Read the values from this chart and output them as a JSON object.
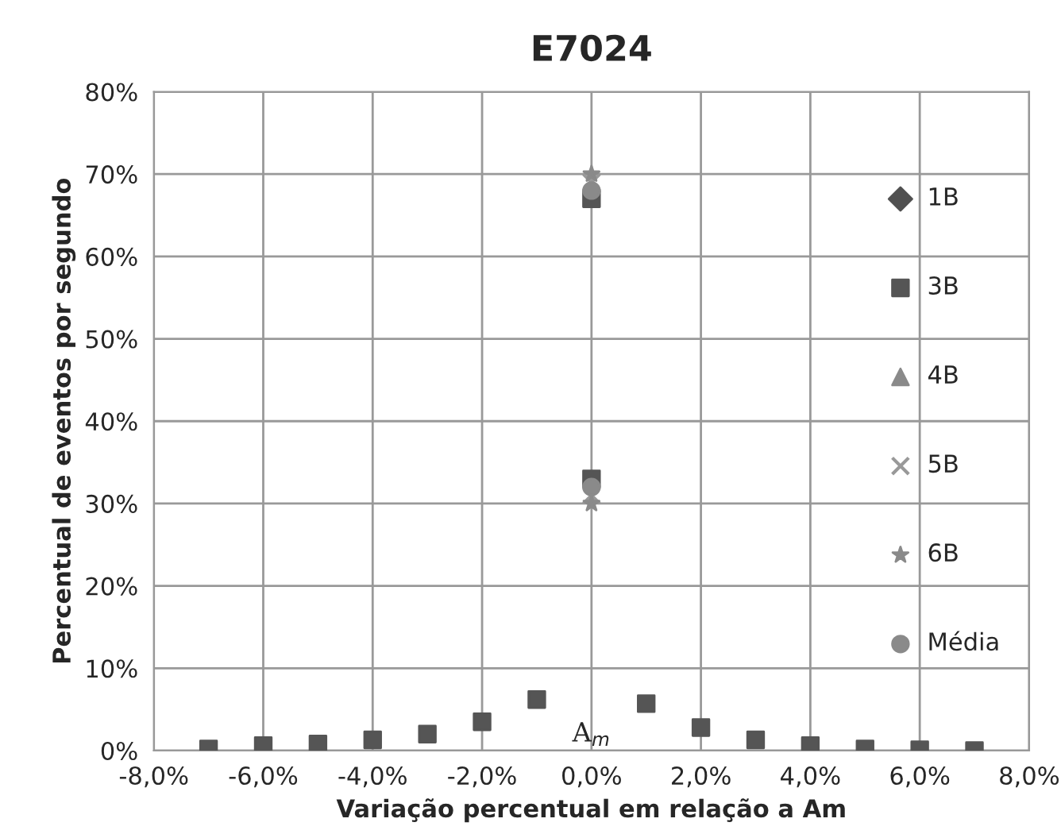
{
  "chart_data": {
    "type": "scatter",
    "title": "E7024",
    "xlabel": "Variação percentual em relação a Am",
    "ylabel": "Percentual de eventos por segundo",
    "x": [
      -7,
      -6,
      -5,
      -4,
      -3,
      -2,
      -1,
      0,
      0,
      1,
      2,
      3,
      4,
      5,
      6,
      7
    ],
    "series": [
      {
        "name": "1B",
        "color": "#505050",
        "marker": "diamond",
        "values": [
          null,
          null,
          null,
          null,
          null,
          null,
          null,
          null,
          null,
          null,
          null,
          null,
          null,
          null,
          null,
          null
        ]
      },
      {
        "name": "3B",
        "color": "#555555",
        "marker": "square",
        "values": [
          0.2,
          0.6,
          0.8,
          1.3,
          2.0,
          3.5,
          6.2,
          67,
          33,
          5.7,
          2.8,
          1.3,
          0.6,
          0.2,
          0.1,
          0.0
        ]
      },
      {
        "name": "4B",
        "color": "#8a8a8a",
        "marker": "triangle",
        "values": [
          null,
          null,
          null,
          null,
          null,
          null,
          null,
          null,
          null,
          null,
          null,
          null,
          null,
          null,
          null,
          null
        ]
      },
      {
        "name": "5B",
        "color": "#999999",
        "marker": "cross",
        "values": [
          null,
          null,
          null,
          null,
          null,
          null,
          null,
          69,
          31,
          null,
          null,
          null,
          null,
          null,
          null,
          null
        ]
      },
      {
        "name": "6B",
        "color": "#8a8a8a",
        "marker": "star",
        "values": [
          null,
          null,
          null,
          null,
          null,
          null,
          null,
          70,
          30,
          null,
          null,
          null,
          null,
          null,
          null,
          null
        ]
      },
      {
        "name": "Média",
        "color": "#8a8a8a",
        "marker": "circle",
        "values": [
          null,
          null,
          null,
          null,
          null,
          null,
          null,
          68,
          32,
          null,
          null,
          null,
          null,
          null,
          null,
          null
        ]
      }
    ],
    "xlim": [
      -8,
      8
    ],
    "ylim": [
      0,
      80
    ],
    "xticks": [
      {
        "value": -8,
        "label": "-8,0%"
      },
      {
        "value": -6,
        "label": "-6,0%"
      },
      {
        "value": -4,
        "label": "-4,0%"
      },
      {
        "value": -2,
        "label": "-2,0%"
      },
      {
        "value": 0,
        "label": "0,0%"
      },
      {
        "value": 2,
        "label": "2,0%"
      },
      {
        "value": 4,
        "label": "4,0%"
      },
      {
        "value": 6,
        "label": "6,0%"
      },
      {
        "value": 8,
        "label": "8,0%"
      }
    ],
    "yticks": [
      {
        "value": 0,
        "label": "0%"
      },
      {
        "value": 10,
        "label": "10%"
      },
      {
        "value": 20,
        "label": "20%"
      },
      {
        "value": 30,
        "label": "30%"
      },
      {
        "value": 40,
        "label": "40%"
      },
      {
        "value": 50,
        "label": "50%"
      },
      {
        "value": 60,
        "label": "60%"
      },
      {
        "value": 70,
        "label": "70%"
      },
      {
        "value": 80,
        "label": "80%"
      }
    ],
    "annotations": [
      "A$_{m}$"
    ],
    "grid": true,
    "legend": "right"
  }
}
